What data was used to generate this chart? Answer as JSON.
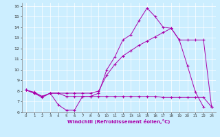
{
  "s1_x": [
    0,
    1,
    2,
    3,
    4,
    5,
    6,
    7,
    8,
    9,
    10,
    11,
    12,
    13,
    14,
    15,
    16,
    17,
    18,
    19,
    20,
    21,
    22
  ],
  "s1_y": [
    8.1,
    7.9,
    7.5,
    7.8,
    6.7,
    6.2,
    6.2,
    7.5,
    7.5,
    7.8,
    10.0,
    11.2,
    12.8,
    13.3,
    14.6,
    15.8,
    15.0,
    14.0,
    13.9,
    12.8,
    10.4,
    7.9,
    6.5
  ],
  "s2_x": [
    0,
    1,
    2,
    3,
    4,
    5,
    6,
    7,
    8,
    9,
    10,
    11,
    12,
    13,
    14,
    15,
    16,
    17,
    18,
    19,
    20,
    21,
    22,
    23
  ],
  "s2_y": [
    8.1,
    7.8,
    7.5,
    7.8,
    7.8,
    7.8,
    7.8,
    7.8,
    7.8,
    8.0,
    9.5,
    10.5,
    11.3,
    11.8,
    12.3,
    12.7,
    13.1,
    13.5,
    13.9,
    12.8,
    12.8,
    12.8,
    12.8,
    6.5
  ],
  "s3_x": [
    0,
    1,
    2,
    3,
    4,
    5,
    6,
    7,
    8,
    9,
    10,
    11,
    12,
    13,
    14,
    15,
    16,
    17,
    18,
    19,
    20,
    21,
    22,
    23
  ],
  "s3_y": [
    8.1,
    7.8,
    7.4,
    7.8,
    7.8,
    7.5,
    7.5,
    7.5,
    7.5,
    7.5,
    7.5,
    7.5,
    7.5,
    7.5,
    7.5,
    7.5,
    7.5,
    7.4,
    7.4,
    7.4,
    7.4,
    7.4,
    7.4,
    6.5
  ],
  "color": "#aa00aa",
  "bg_color": "#cceeff",
  "xlabel": "Windchill (Refroidissement éolien,°C)",
  "xlim": [
    -0.5,
    23.5
  ],
  "ylim": [
    6,
    16.3
  ],
  "yticks": [
    6,
    7,
    8,
    9,
    10,
    11,
    12,
    13,
    14,
    15,
    16
  ],
  "xticks": [
    0,
    1,
    2,
    3,
    4,
    5,
    6,
    7,
    8,
    9,
    10,
    11,
    12,
    13,
    14,
    15,
    16,
    17,
    18,
    19,
    20,
    21,
    22,
    23
  ]
}
